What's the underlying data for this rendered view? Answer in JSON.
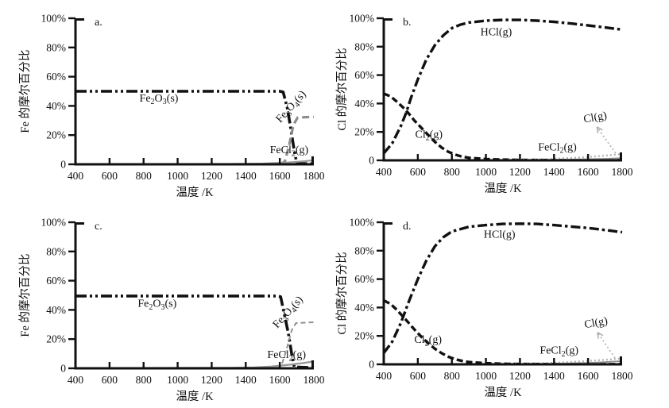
{
  "figure": {
    "background": "#ffffff",
    "colors": {
      "black": "#111111",
      "gray": "#8c8c8c",
      "light_gray": "#b0b0b0"
    }
  },
  "chart_data": [
    {
      "type": "line",
      "letter": "a.",
      "ylabel": "Fe 的摩尔百分比",
      "xlabel": "温度 /K",
      "xlim": [
        400,
        1800
      ],
      "ylim": [
        0,
        100
      ],
      "x_tick_values": [
        400,
        600,
        800,
        1000,
        1200,
        1400,
        1600,
        1800
      ],
      "x_tick_labels": [
        "400",
        "600",
        "800",
        "1000",
        "1200",
        "1400",
        "1600",
        "1800"
      ],
      "y_tick_values": [
        100,
        80,
        60,
        40,
        20,
        0
      ],
      "y_tick_labels": [
        "100%",
        "80%",
        "60%",
        "40%",
        "20%",
        "0"
      ],
      "grid": false,
      "legend": "inline-labels",
      "series": [
        {
          "name": "Fe2O3(s)",
          "label": "Fe_2O_3(s)",
          "style": "dashdotdot",
          "color": "#111111",
          "width": 3.6,
          "label_pos": [
            890,
            43
          ],
          "label_rotation": 0,
          "points": [
            [
              400,
              50
            ],
            [
              1600,
              50
            ],
            [
              1620,
              49.5
            ],
            [
              1645,
              38
            ],
            [
              1665,
              24
            ],
            [
              1685,
              9
            ],
            [
              1700,
              0.6
            ],
            [
              1800,
              0.3
            ]
          ]
        },
        {
          "name": "Fe3O4(s)",
          "label": "Fe_3O_4(s)",
          "style": "gray-dashed-thick",
          "color": "#8c8c8c",
          "width": 3.2,
          "label_pos": [
            1680,
            38
          ],
          "label_rotation": -48,
          "points": [
            [
              1605,
              0
            ],
            [
              1630,
              2
            ],
            [
              1655,
              13
            ],
            [
              1680,
              27
            ],
            [
              1705,
              32
            ],
            [
              1800,
              32.5
            ]
          ]
        },
        {
          "name": "FeCl2(g)",
          "label": "FeCl_2(g)",
          "style": "gray-solid",
          "color": "#999999",
          "width": 2.2,
          "label_pos": [
            1655,
            7.5
          ],
          "label_rotation": 0,
          "points": [
            [
              400,
              0.05
            ],
            [
              1300,
              0.2
            ],
            [
              1500,
              0.5
            ],
            [
              1650,
              1.3
            ],
            [
              1750,
              2.2
            ],
            [
              1800,
              2.8
            ]
          ]
        }
      ]
    },
    {
      "type": "line",
      "letter": "b.",
      "ylabel": "Cl 的摩尔百分比",
      "xlabel": "温度 /K",
      "xlim": [
        400,
        1800
      ],
      "ylim": [
        0,
        100
      ],
      "x_tick_values": [
        400,
        600,
        800,
        1000,
        1200,
        1400,
        1600,
        1800
      ],
      "x_tick_labels": [
        "400",
        "600",
        "800",
        "1000",
        "1200",
        "1400",
        "1600",
        "1800"
      ],
      "y_tick_values": [
        100,
        80,
        60,
        40,
        20,
        0
      ],
      "y_tick_labels": [
        "100%",
        "80%",
        "60%",
        "40%",
        "20%",
        "0"
      ],
      "grid": false,
      "legend": "inline-labels",
      "series": [
        {
          "name": "HCl(g)",
          "label": "HCl(g)",
          "style": "dashdot",
          "color": "#111111",
          "width": 3.4,
          "label_pos": [
            1060,
            88
          ],
          "label_rotation": 0,
          "points": [
            [
              400,
              5
            ],
            [
              450,
              12
            ],
            [
              500,
              24
            ],
            [
              530,
              33
            ],
            [
              560,
              44
            ],
            [
              600,
              57
            ],
            [
              650,
              71
            ],
            [
              700,
              81
            ],
            [
              750,
              88
            ],
            [
              800,
              93
            ],
            [
              850,
              95.5
            ],
            [
              900,
              97
            ],
            [
              1000,
              98.3
            ],
            [
              1100,
              98.8
            ],
            [
              1200,
              98.8
            ],
            [
              1300,
              98.3
            ],
            [
              1400,
              97.5
            ],
            [
              1500,
              96.3
            ],
            [
              1600,
              95
            ],
            [
              1700,
              93.5
            ],
            [
              1800,
              92
            ]
          ]
        },
        {
          "name": "Cl2(g)",
          "label": "Cl_2(g)",
          "style": "dashed",
          "color": "#111111",
          "width": 3.4,
          "label_pos": [
            665,
            16
          ],
          "label_rotation": 0,
          "points": [
            [
              400,
              47
            ],
            [
              440,
              45
            ],
            [
              480,
              41
            ],
            [
              520,
              36.5
            ],
            [
              550,
              32.5
            ],
            [
              580,
              28
            ],
            [
              620,
              23
            ],
            [
              660,
              18
            ],
            [
              700,
              13
            ],
            [
              740,
              9
            ],
            [
              780,
              6
            ],
            [
              820,
              4
            ],
            [
              860,
              2.6
            ],
            [
              900,
              1.8
            ],
            [
              1000,
              0.9
            ],
            [
              1100,
              0.5
            ],
            [
              1200,
              0.3
            ],
            [
              1400,
              0.15
            ],
            [
              1600,
              0.1
            ],
            [
              1800,
              0.1
            ]
          ]
        },
        {
          "name": "FeCl2(g)",
          "label": "FeCl_2(g)",
          "style": "gray-solid-thin",
          "color": "#8c8c8c",
          "width": 1.8,
          "label_pos": [
            1420,
            7
          ],
          "label_rotation": 0,
          "points": [
            [
              400,
              0.05
            ],
            [
              1000,
              0.1
            ],
            [
              1300,
              0.3
            ],
            [
              1500,
              0.6
            ],
            [
              1700,
              1.1
            ],
            [
              1800,
              1.6
            ]
          ]
        },
        {
          "name": "Cl(g)",
          "label": "Cl(g)",
          "style": "dotted",
          "color": "#b0b0b0",
          "width": 2.2,
          "label_pos": [
            1645,
            28
          ],
          "label_rotation": -10,
          "points": [
            [
              400,
              0.05
            ],
            [
              800,
              0.1
            ],
            [
              1000,
              0.2
            ],
            [
              1200,
              0.45
            ],
            [
              1300,
              0.7
            ],
            [
              1400,
              1.1
            ],
            [
              1500,
              1.7
            ],
            [
              1600,
              2.4
            ],
            [
              1700,
              3.3
            ],
            [
              1800,
              4.5
            ]
          ]
        }
      ],
      "annotation": {
        "for_series": "Cl(g)",
        "arrow_tail": [
          1762,
          5
        ],
        "arrow_head": [
          1652,
          23.5
        ],
        "style": "dotted",
        "color": "#b0b0b0"
      }
    },
    {
      "type": "line",
      "letter": "c.",
      "ylabel": "Fe 的摩尔百分比",
      "xlabel": "温度 /K",
      "xlim": [
        400,
        1800
      ],
      "ylim": [
        0,
        100
      ],
      "x_tick_values": [
        400,
        600,
        800,
        1000,
        1200,
        1400,
        1600,
        1800
      ],
      "x_tick_labels": [
        "400",
        "600",
        "800",
        "1000",
        "1200",
        "1400",
        "1600",
        "1800"
      ],
      "y_tick_values": [
        100,
        80,
        60,
        40,
        20,
        0
      ],
      "y_tick_labels": [
        "100%",
        "80%",
        "60%",
        "40%",
        "20%",
        "0"
      ],
      "grid": false,
      "legend": "inline-labels",
      "series": [
        {
          "name": "Fe2O3(s)",
          "label": "Fe_2O_3(s)",
          "style": "dashdotdot",
          "color": "#111111",
          "width": 3.6,
          "label_pos": [
            880,
            42
          ],
          "label_rotation": 0,
          "points": [
            [
              400,
              49.5
            ],
            [
              1580,
              49.5
            ],
            [
              1605,
              49
            ],
            [
              1625,
              38
            ],
            [
              1650,
              24
            ],
            [
              1670,
              10
            ],
            [
              1685,
              1
            ],
            [
              1800,
              0.3
            ]
          ]
        },
        {
          "name": "Fe3O4(s)",
          "label": "Fe_3O_4(s)",
          "style": "gray-dashed-thin",
          "color": "#909090",
          "width": 2,
          "label_pos": [
            1662,
            37
          ],
          "label_rotation": -48,
          "points": [
            [
              1580,
              0
            ],
            [
              1610,
              2
            ],
            [
              1640,
              13
            ],
            [
              1670,
              26
            ],
            [
              1695,
              31
            ],
            [
              1800,
              31.5
            ]
          ]
        },
        {
          "name": "FeCl2(g)",
          "label": "FeCl_2(g)",
          "style": "gray-solid",
          "color": "#999999",
          "width": 2.4,
          "label_pos": [
            1640,
            7
          ],
          "label_rotation": 0,
          "points": [
            [
              400,
              0.05
            ],
            [
              1300,
              0.3
            ],
            [
              1450,
              0.6
            ],
            [
              1550,
              1.2
            ],
            [
              1650,
              2.4
            ],
            [
              1750,
              3.8
            ],
            [
              1800,
              4.8
            ]
          ]
        }
      ]
    },
    {
      "type": "line",
      "letter": "d.",
      "ylabel": "Cl 的摩尔百分比",
      "xlabel": "温度 /K",
      "xlim": [
        400,
        1800
      ],
      "ylim": [
        0,
        100
      ],
      "x_tick_values": [
        400,
        600,
        800,
        1000,
        1200,
        1400,
        1600,
        1800
      ],
      "x_tick_labels": [
        "400",
        "600",
        "800",
        "1000",
        "1200",
        "1400",
        "1600",
        "1800"
      ],
      "y_tick_values": [
        100,
        80,
        60,
        40,
        20,
        0
      ],
      "y_tick_labels": [
        "100%",
        "80%",
        "60%",
        "40%",
        "20%",
        "0"
      ],
      "grid": false,
      "legend": "inline-labels",
      "series": [
        {
          "name": "HCl(g)",
          "label": "HCl(g)",
          "style": "dashdot",
          "color": "#111111",
          "width": 3.4,
          "label_pos": [
            1080,
            89
          ],
          "label_rotation": 0,
          "points": [
            [
              400,
              8
            ],
            [
              450,
              16
            ],
            [
              500,
              29
            ],
            [
              550,
              45
            ],
            [
              600,
              60
            ],
            [
              650,
              73
            ],
            [
              700,
              83
            ],
            [
              750,
              89.5
            ],
            [
              800,
              93.5
            ],
            [
              900,
              96.8
            ],
            [
              1000,
              98
            ],
            [
              1100,
              98.8
            ],
            [
              1200,
              99
            ],
            [
              1300,
              98.8
            ],
            [
              1400,
              98
            ],
            [
              1500,
              97
            ],
            [
              1600,
              96
            ],
            [
              1700,
              94.5
            ],
            [
              1800,
              93
            ]
          ]
        },
        {
          "name": "Cl2(g)",
          "label": "Cl_2(g)",
          "style": "dashed",
          "color": "#111111",
          "width": 3.4,
          "label_pos": [
            660,
            15
          ],
          "label_rotation": 0,
          "points": [
            [
              400,
              45
            ],
            [
              440,
              42.5
            ],
            [
              480,
              38
            ],
            [
              510,
              34
            ],
            [
              540,
              30
            ],
            [
              580,
              24.5
            ],
            [
              620,
              19.5
            ],
            [
              660,
              15
            ],
            [
              700,
              11
            ],
            [
              740,
              7.8
            ],
            [
              780,
              5.3
            ],
            [
              820,
              3.6
            ],
            [
              860,
              2.4
            ],
            [
              900,
              1.6
            ],
            [
              1000,
              0.8
            ],
            [
              1100,
              0.4
            ],
            [
              1200,
              0.25
            ],
            [
              1400,
              0.15
            ],
            [
              1600,
              0.1
            ],
            [
              1800,
              0.1
            ]
          ]
        },
        {
          "name": "FeCl2(g)",
          "label": "FeCl_2(g)",
          "style": "gray-solid-thin",
          "color": "#8c8c8c",
          "width": 1.8,
          "label_pos": [
            1430,
            7.5
          ],
          "label_rotation": 0,
          "points": [
            [
              400,
              0.05
            ],
            [
              1200,
              0.2
            ],
            [
              1400,
              0.5
            ],
            [
              1600,
              1
            ],
            [
              1700,
              1.6
            ],
            [
              1800,
              2.3
            ]
          ]
        },
        {
          "name": "Cl(g)",
          "label": "Cl(g)",
          "style": "dotted",
          "color": "#b0b0b0",
          "width": 2.2,
          "label_pos": [
            1650,
            27
          ],
          "label_rotation": -10,
          "points": [
            [
              400,
              0.05
            ],
            [
              1000,
              0.2
            ],
            [
              1200,
              0.5
            ],
            [
              1400,
              1.1
            ],
            [
              1500,
              1.7
            ],
            [
              1600,
              2.4
            ],
            [
              1700,
              3.2
            ],
            [
              1800,
              4.2
            ]
          ]
        }
      ],
      "annotation": {
        "for_series": "Cl(g)",
        "arrow_tail": [
          1758,
          4.5
        ],
        "arrow_head": [
          1655,
          22.5
        ],
        "style": "dotted",
        "color": "#b0b0b0"
      }
    }
  ]
}
